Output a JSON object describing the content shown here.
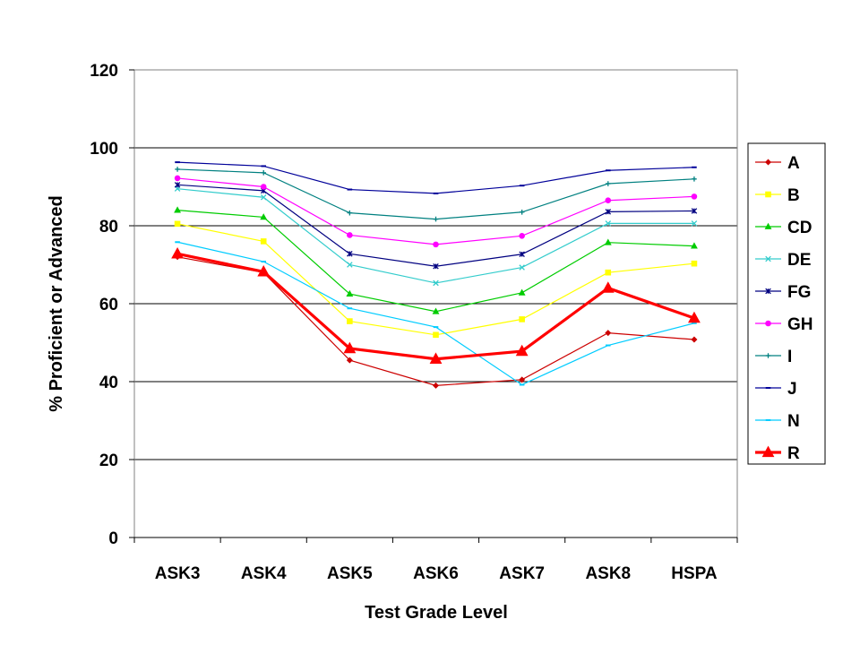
{
  "chart_data": {
    "type": "line",
    "title": "",
    "xlabel": "Test Grade Level",
    "ylabel": "% Proficient or Advanced",
    "ylim": [
      0,
      120
    ],
    "yticks": [
      "0",
      "20",
      "40",
      "60",
      "80",
      "100",
      "120"
    ],
    "categories": [
      "ASK3",
      "ASK4",
      "ASK5",
      "ASK6",
      "ASK7",
      "ASK8",
      "HSPA"
    ],
    "grid": "horizontal",
    "legend_position": "right",
    "series": [
      {
        "name": "A",
        "color": "#cc0000",
        "marker": "diamond",
        "values": [
          72,
          68,
          45.5,
          39,
          40.5,
          52.5,
          50.8
        ]
      },
      {
        "name": "B",
        "color": "#ffff00",
        "marker": "square",
        "values": [
          80.5,
          76,
          55.5,
          52,
          56,
          68,
          70.3
        ]
      },
      {
        "name": "CD",
        "color": "#00cc00",
        "marker": "triangle",
        "values": [
          84,
          82.2,
          62.5,
          58,
          62.8,
          75.7,
          74.8
        ]
      },
      {
        "name": "DE",
        "color": "#33cccc",
        "marker": "x",
        "values": [
          89.5,
          87.3,
          70,
          65.3,
          69.3,
          80.6,
          80.6
        ]
      },
      {
        "name": "FG",
        "color": "#000080",
        "marker": "star",
        "values": [
          90.5,
          89,
          72.8,
          69.6,
          72.7,
          83.6,
          83.8
        ]
      },
      {
        "name": "GH",
        "color": "#ff00ff",
        "marker": "circle",
        "values": [
          92.2,
          90,
          77.6,
          75.2,
          77.4,
          86.5,
          87.5
        ]
      },
      {
        "name": "I",
        "color": "#008080",
        "marker": "plus",
        "values": [
          94.5,
          93.6,
          83.3,
          81.7,
          83.5,
          90.8,
          92
        ]
      },
      {
        "name": "J",
        "color": "#000099",
        "marker": "dash",
        "values": [
          96.3,
          95.3,
          89.3,
          88.3,
          90.3,
          94.2,
          95
        ]
      },
      {
        "name": "N",
        "color": "#00ccff",
        "marker": "dash",
        "values": [
          75.8,
          70.8,
          58.8,
          54,
          39.2,
          49.3,
          55
        ]
      },
      {
        "name": "R",
        "color": "#ff0000",
        "marker": "triangle",
        "bold": true,
        "values": [
          72.8,
          68.2,
          48.5,
          45.8,
          47.8,
          64,
          56.3
        ]
      }
    ]
  }
}
